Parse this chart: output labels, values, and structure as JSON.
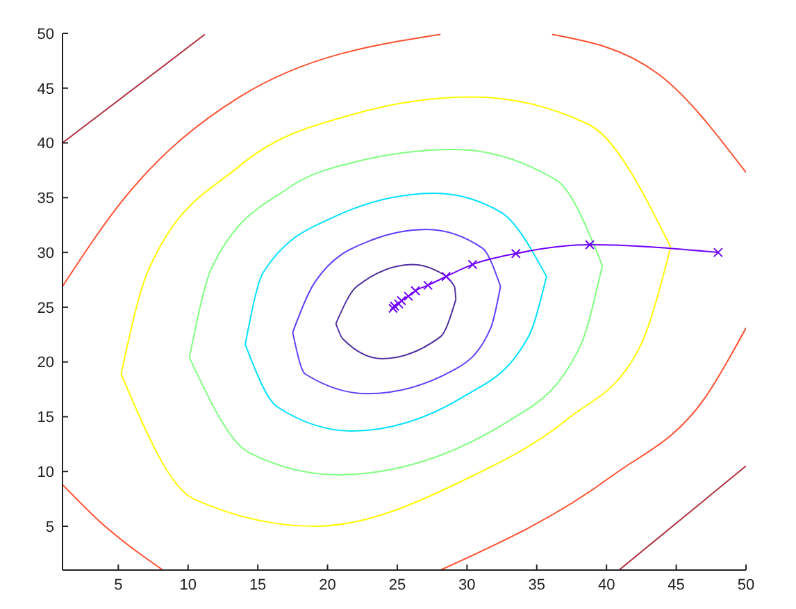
{
  "chart_data": {
    "type": "line",
    "xlim": [
      1,
      50
    ],
    "ylim": [
      1,
      50
    ],
    "xticks": [
      5,
      10,
      15,
      20,
      25,
      30,
      35,
      40,
      45,
      50
    ],
    "yticks": [
      5,
      10,
      15,
      20,
      25,
      30,
      35,
      40,
      45,
      50
    ],
    "grid": false,
    "legend": false,
    "line_style": "solid",
    "series": [
      {
        "color": "#b03040",
        "marker": "none",
        "x": [
          1,
          11.2,
          null,
          40.9,
          50
        ],
        "values": [
          40.0,
          49.9,
          null,
          1.0,
          10.5
        ]
      },
      {
        "color": "#ff5030",
        "marker": "none",
        "x": [
          1,
          5.4,
          13.7,
          28.1,
          null,
          36.1,
          43.7,
          50,
          null,
          50,
          47.1,
          40.4,
          28.1,
          null,
          1,
          3.7,
          8.2
        ],
        "values": [
          26.9,
          34.9,
          44.2,
          49.9,
          null,
          49.9,
          46.3,
          37.3,
          null,
          23.1,
          16.8,
          9.6,
          1.0,
          null,
          8.8,
          5.4,
          1.0
        ]
      },
      {
        "color": "#ffff00",
        "marker": "none",
        "x": [
          5.2,
          7.1,
          13.7,
          22.1,
          30.4,
          38.7,
          44.6,
          null,
          5.2,
          10.4,
          19.1,
          30.4,
          37.1,
          42.4,
          44.6
        ],
        "values": [
          18.9,
          28.2,
          37.9,
          42.7,
          44.2,
          41.7,
          30.5,
          null,
          18.9,
          7.5,
          5.0,
          9.6,
          14.7,
          21.4,
          30.5
        ]
      },
      {
        "color": "#80ff80",
        "marker": "none",
        "x": [
          10.1,
          11.7,
          17.1,
          22.1,
          29.1,
          36.4,
          39.7,
          null,
          10.1,
          14.4,
          20.7,
          33.1,
          38.1,
          39.7
        ],
        "values": [
          20.4,
          28.6,
          35.8,
          38.3,
          39.4,
          36.6,
          28.8,
          null,
          20.4,
          11.7,
          9.7,
          14.7,
          21.4,
          28.8
        ]
      },
      {
        "color": "#00e0ff",
        "marker": "none",
        "x": [
          14.1,
          15.4,
          20.4,
          27.7,
          32.4,
          35.7,
          null,
          14.1,
          16.4,
          21.7,
          29.7,
          34.4,
          35.7
        ],
        "values": [
          21.6,
          28.2,
          33.2,
          35.4,
          33.7,
          27.8,
          null,
          21.6,
          15.9,
          13.7,
          16.8,
          22.3,
          27.8
        ]
      },
      {
        "color": "#6040ff",
        "marker": "none",
        "x": [
          17.5,
          19.1,
          23.1,
          27.1,
          31.1,
          32.4,
          null,
          17.5,
          18.4,
          22.9,
          29.1,
          31.7,
          32.4
        ],
        "values": [
          22.7,
          27.3,
          31.1,
          32.1,
          30.4,
          26.9,
          null,
          22.7,
          18.9,
          17.1,
          19.3,
          23.1,
          26.9
        ]
      },
      {
        "color": "#5030a0",
        "marker": "none",
        "x": [
          20.6,
          22.1,
          26.1,
          27.7,
          29.1,
          29.2,
          null,
          20.6,
          21.1,
          23.9,
          28.1,
          29.2
        ],
        "values": [
          23.5,
          26.9,
          28.9,
          28.4,
          26.9,
          25.7,
          null,
          23.5,
          22.1,
          20.3,
          22.3,
          25.7
        ]
      },
      {
        "color": "#7000ff",
        "marker": "cross",
        "x": [
          48,
          38.8,
          33.5,
          30.4,
          28.5,
          27.2,
          26.3,
          25.8,
          25.3,
          25.1,
          24.8,
          24.7
        ],
        "values": [
          30,
          30.7,
          29.9,
          28.9,
          27.8,
          27.0,
          26.5,
          26.0,
          25.6,
          25.3,
          25.1,
          24.9
        ]
      }
    ]
  }
}
